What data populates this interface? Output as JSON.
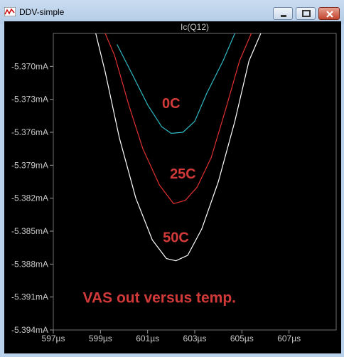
{
  "window": {
    "title": "DDV-simple"
  },
  "colors": {
    "cyan": "#30b8c4",
    "red": "#e03030",
    "white": "#ffffff",
    "annotation": "#d23a3a",
    "grid": "#4a4a4a"
  },
  "chart_data": {
    "type": "line",
    "title": "Ic(Q12)",
    "xlabel": "",
    "ylabel": "",
    "xlim": [
      597,
      609
    ],
    "ylim": [
      -5.394,
      -5.367
    ],
    "x_ticks": [
      "597µs",
      "599µs",
      "601µs",
      "603µs",
      "605µs",
      "607µs"
    ],
    "y_ticks": [
      "-5.370mA",
      "-5.373mA",
      "-5.376mA",
      "-5.379mA",
      "-5.382mA",
      "-5.385mA",
      "-5.388mA",
      "-5.391mA",
      "-5.394mA"
    ],
    "series": [
      {
        "name": "0C",
        "color": "cyan",
        "x": [
          599.7,
          600.3,
          601.0,
          601.6,
          602.0,
          602.5,
          603.0,
          603.5,
          604.2,
          604.7
        ],
        "y": [
          -5.368,
          -5.3705,
          -5.3735,
          -5.3755,
          -5.3761,
          -5.376,
          -5.375,
          -5.3725,
          -5.3695,
          -5.367
        ]
      },
      {
        "name": "25C",
        "color": "red",
        "x": [
          599.2,
          599.6,
          600.2,
          600.8,
          601.5,
          602.1,
          602.6,
          603.1,
          603.7,
          604.3,
          604.9,
          605.4
        ],
        "y": [
          -5.367,
          -5.369,
          -5.3735,
          -5.3775,
          -5.3808,
          -5.3825,
          -5.3822,
          -5.381,
          -5.3783,
          -5.374,
          -5.3695,
          -5.367
        ]
      },
      {
        "name": "50C",
        "color": "white",
        "x": [
          598.8,
          599.2,
          599.8,
          600.5,
          601.2,
          601.8,
          602.2,
          602.7,
          603.3,
          604.0,
          604.7,
          605.3,
          605.8
        ],
        "y": [
          -5.367,
          -5.3705,
          -5.3765,
          -5.382,
          -5.3858,
          -5.3875,
          -5.3877,
          -5.3872,
          -5.3848,
          -5.3805,
          -5.375,
          -5.3695,
          -5.367
        ]
      }
    ],
    "annotations": [
      {
        "text": "0C",
        "x": 602.0,
        "y": -5.3738
      },
      {
        "text": "25C",
        "x": 602.5,
        "y": -5.3802
      },
      {
        "text": "50C",
        "x": 602.2,
        "y": -5.386
      },
      {
        "text": "VAS out versus temp.",
        "x": 601.5,
        "y": -5.3915
      }
    ]
  }
}
